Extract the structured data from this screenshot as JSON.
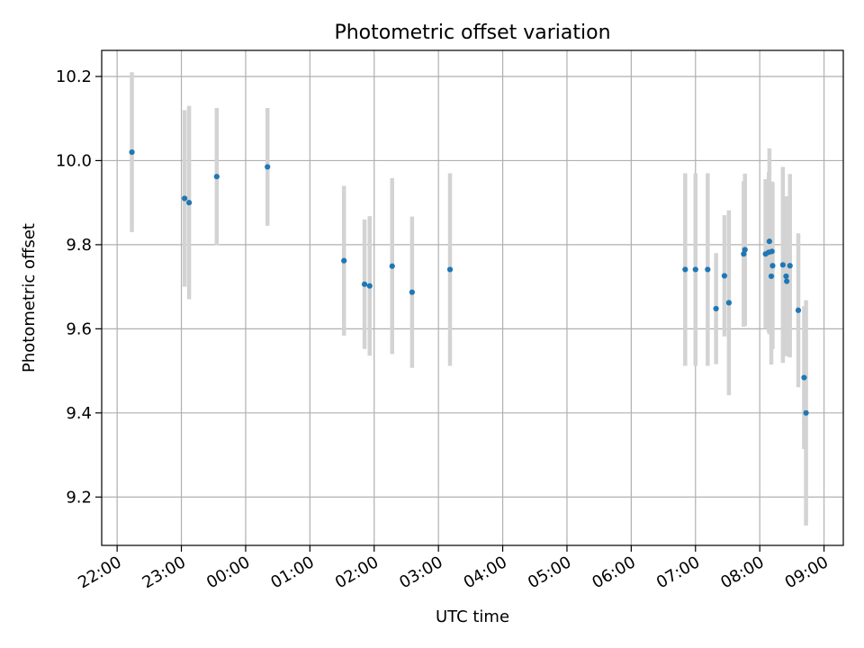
{
  "chart_data": {
    "type": "scatter",
    "title": "Photometric offset variation",
    "xlabel": "UTC time",
    "ylabel": "Photometric offset",
    "grid": true,
    "xlim_hours": [
      21.76,
      33.3
    ],
    "ylim": [
      9.085,
      10.262
    ],
    "x_ticks_hours": [
      22,
      23,
      24,
      25,
      26,
      27,
      28,
      29,
      30,
      31,
      32,
      33
    ],
    "x_tick_labels": [
      "22:00",
      "23:00",
      "00:00",
      "01:00",
      "02:00",
      "03:00",
      "04:00",
      "05:00",
      "06:00",
      "07:00",
      "08:00",
      "09:00"
    ],
    "y_ticks": [
      9.2,
      9.4,
      9.6,
      9.8,
      10.0,
      10.2
    ],
    "y_tick_labels": [
      "9.2",
      "9.4",
      "9.6",
      "9.8",
      "10.0",
      "10.2"
    ],
    "colors": {
      "points": "#1f77b4",
      "errorbars": "#d3d3d3"
    },
    "series": [
      {
        "x_utc": [
          "22:14",
          "23:03",
          "23:07",
          "23:33",
          "00:20",
          "01:32",
          "01:51",
          "01:56",
          "02:17",
          "02:35",
          "03:11",
          "06:50",
          "07:00",
          "07:11",
          "07:19",
          "07:27",
          "07:31",
          "07:45",
          "07:46",
          "08:05",
          "08:08",
          "08:09",
          "08:11",
          "08:11",
          "08:12",
          "08:21",
          "08:24",
          "08:25",
          "08:28",
          "08:36",
          "08:41",
          "08:43"
        ],
        "x_hours": [
          22.23,
          23.05,
          23.12,
          23.55,
          24.34,
          25.53,
          25.85,
          25.93,
          26.28,
          26.59,
          27.18,
          30.84,
          31.0,
          31.19,
          31.32,
          31.45,
          31.52,
          31.75,
          31.77,
          32.09,
          32.14,
          32.15,
          32.18,
          32.19,
          32.2,
          32.36,
          32.41,
          32.42,
          32.47,
          32.6,
          32.69,
          32.72
        ],
        "y": [
          10.02,
          9.91,
          9.9,
          9.962,
          9.985,
          9.762,
          9.706,
          9.702,
          9.749,
          9.687,
          9.741,
          9.741,
          9.741,
          9.741,
          9.648,
          9.726,
          9.662,
          9.778,
          9.788,
          9.778,
          9.782,
          9.808,
          9.725,
          9.784,
          9.75,
          9.752,
          9.725,
          9.713,
          9.75,
          9.644,
          9.484,
          9.4
        ],
        "yerr": [
          0.19,
          0.21,
          0.23,
          0.163,
          0.14,
          0.178,
          0.154,
          0.166,
          0.209,
          0.18,
          0.229,
          0.229,
          0.229,
          0.229,
          0.132,
          0.144,
          0.22,
          0.173,
          0.181,
          0.178,
          0.19,
          0.221,
          0.21,
          0.166,
          0.198,
          0.233,
          0.19,
          0.17,
          0.218,
          0.183,
          0.17,
          0.268
        ]
      }
    ]
  }
}
